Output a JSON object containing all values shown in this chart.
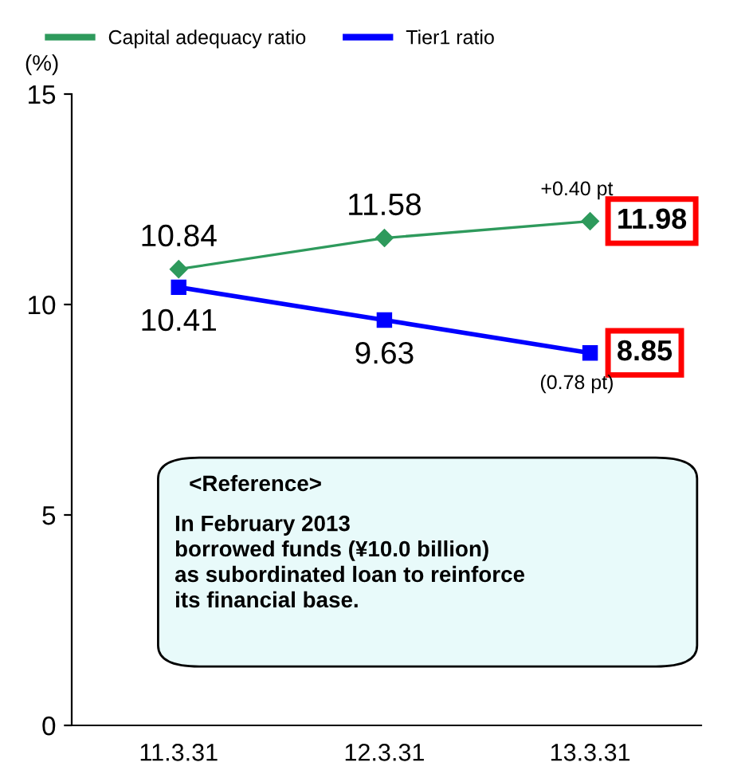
{
  "chart_data": {
    "type": "line",
    "ylabel": "(%)",
    "categories": [
      "11.3.31",
      "12.3.31",
      "13.3.31"
    ],
    "series": [
      {
        "name": "Capital adequacy ratio",
        "color": "#2e9a5c",
        "values": [
          10.84,
          11.58,
          11.98
        ],
        "marker": "diamond"
      },
      {
        "name": "Tier1 ratio",
        "color": "#0000ff",
        "values": [
          10.41,
          9.63,
          8.85
        ],
        "marker": "square"
      }
    ],
    "ylim": [
      0,
      15
    ],
    "yticks": [
      0,
      5,
      10,
      15
    ],
    "grid": false,
    "legend": "top left",
    "data_labels": true,
    "line_style": "solid",
    "annotations": [
      {
        "text": "+0.40 pt",
        "x": "13.3.31",
        "y": 11.98
      },
      {
        "text": "(0.78 pt)",
        "x": "13.3.31",
        "y": 8.85
      },
      "<Reference>",
      "In February 2013\nborrowed funds (¥10.0 billion)\nas subordinated loan to reinforce\nits financial base."
    ]
  }
}
